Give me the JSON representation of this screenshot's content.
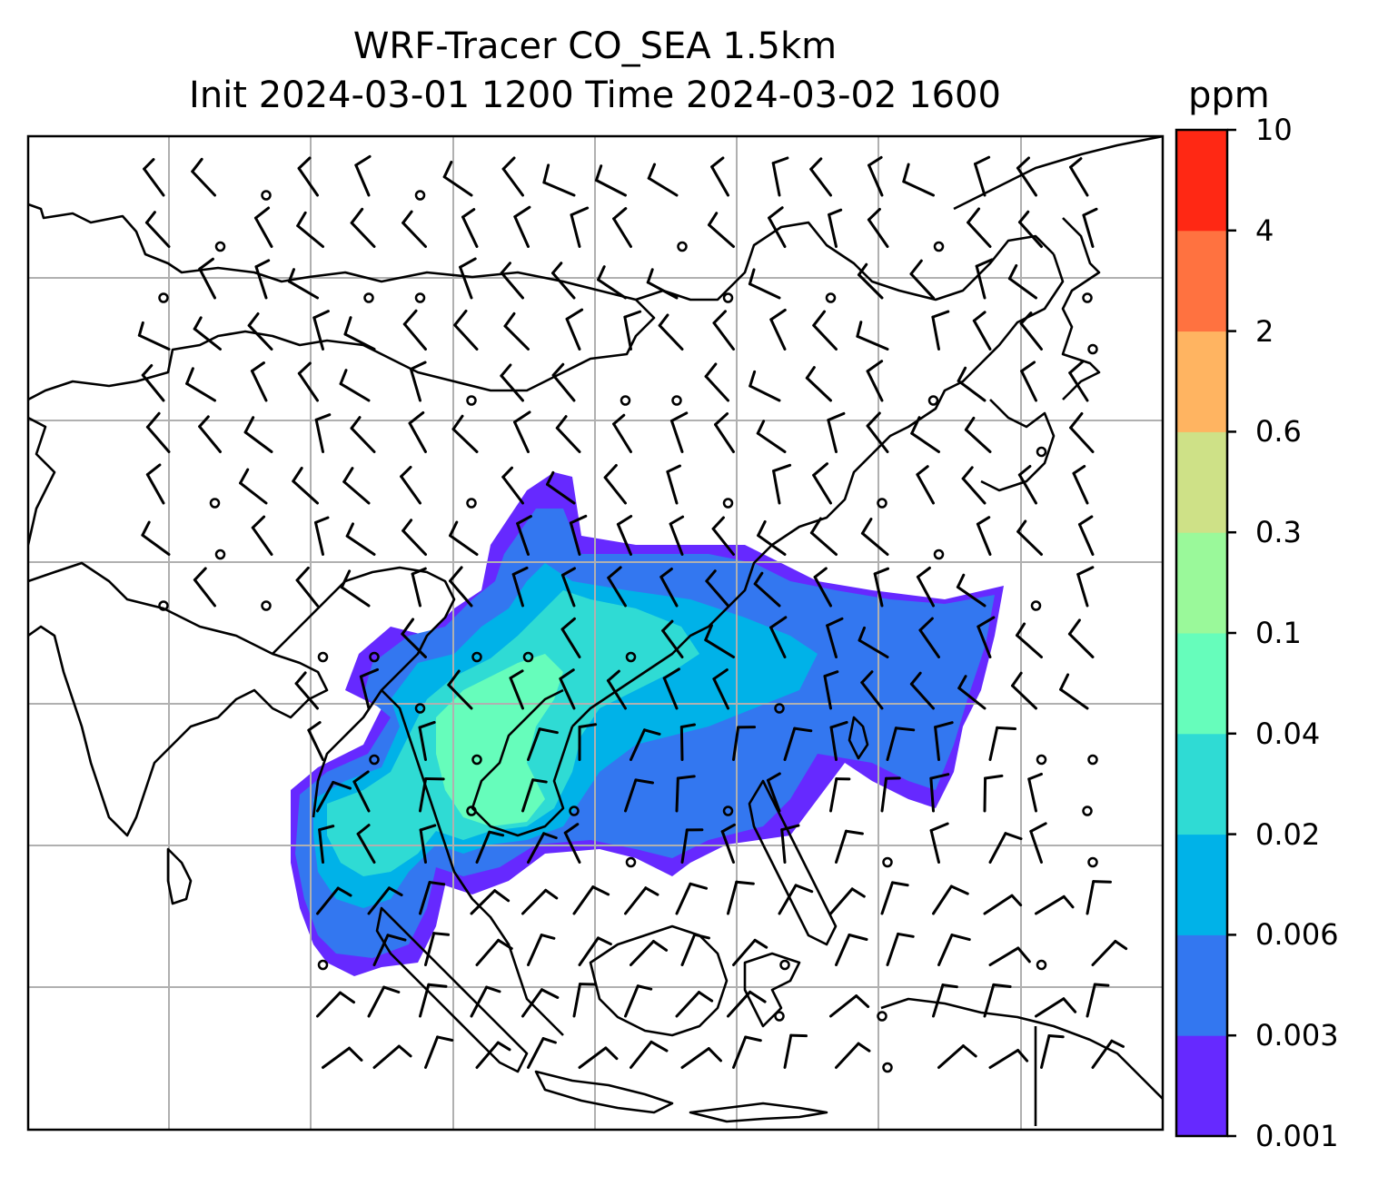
{
  "title": {
    "line1": "WRF-Tracer CO_SEA 1.5km",
    "line2": "Init 2024-03-01 1200 Time 2024-03-02 1600"
  },
  "colorbar": {
    "unit": "ppm",
    "levels": [
      "0.001",
      "0.003",
      "0.006",
      "0.02",
      "0.04",
      "0.1",
      "0.3",
      "0.6",
      "2",
      "4",
      "10"
    ],
    "colors": [
      "#6629ff",
      "#3377f0",
      "#00b2e8",
      "#2fdbd4",
      "#66fdbb",
      "#9af99a",
      "#cee187",
      "#ffb461",
      "#ff7240",
      "#ff2814"
    ]
  },
  "map": {
    "field": "CO_SEA tracer concentration",
    "overlay": "wind barbs",
    "gridlines": true,
    "colors": {
      "frame": "#000000",
      "grid": "#b0b0b0",
      "coast": "#000000",
      "barb": "#000000"
    }
  }
}
